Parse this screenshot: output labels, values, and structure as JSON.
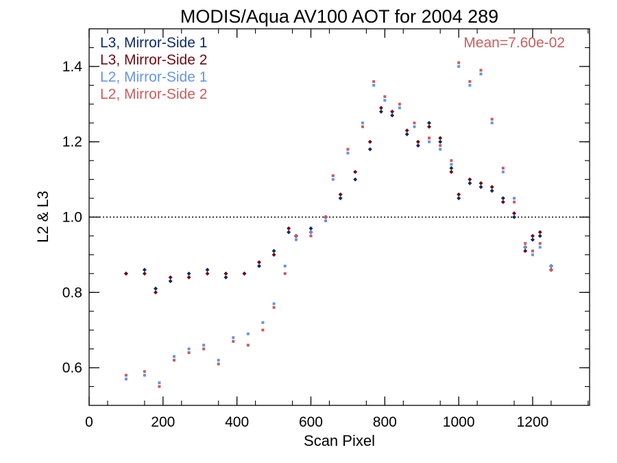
{
  "chart_data": {
    "type": "scatter",
    "title": "MODIS/Aqua AV100 AOT for 2004 289",
    "xlabel": "Scan Pixel",
    "ylabel": "L2 & L3",
    "xlim": [
      0,
      1354
    ],
    "ylim": [
      0.5,
      1.5
    ],
    "xticks": [
      0,
      200,
      400,
      600,
      800,
      1000,
      1200
    ],
    "yticks": [
      0.6,
      0.8,
      1.0,
      1.2,
      1.4
    ],
    "x_tick_labels": [
      "0",
      "200",
      "400",
      "600",
      "800",
      "1000",
      "1200"
    ],
    "y_tick_labels": [
      "0.6",
      "0.8",
      "1.0",
      "1.2",
      "1.4"
    ],
    "reference_line": {
      "y": 1.0,
      "style": "dotted"
    },
    "annotation": {
      "text": "Mean=7.60e-02",
      "color": "#cd5c5c",
      "placement": "top-right"
    },
    "legend_placement": "top-left",
    "series": [
      {
        "name": "L3, Mirror-Side 1",
        "color": "#0b2a66",
        "points": [
          [
            100,
            0.85
          ],
          [
            150,
            0.86
          ],
          [
            180,
            0.81
          ],
          [
            220,
            0.83
          ],
          [
            270,
            0.85
          ],
          [
            320,
            0.86
          ],
          [
            370,
            0.84
          ],
          [
            420,
            0.85
          ],
          [
            460,
            0.87
          ],
          [
            500,
            0.91
          ],
          [
            540,
            0.96
          ],
          [
            560,
            0.95
          ],
          [
            600,
            0.97
          ],
          [
            640,
            1.0
          ],
          [
            680,
            1.05
          ],
          [
            720,
            1.1
          ],
          [
            760,
            1.18
          ],
          [
            790,
            1.28
          ],
          [
            820,
            1.27
          ],
          [
            860,
            1.22
          ],
          [
            890,
            1.19
          ],
          [
            920,
            1.25
          ],
          [
            950,
            1.2
          ],
          [
            980,
            1.13
          ],
          [
            1000,
            1.05
          ],
          [
            1030,
            1.09
          ],
          [
            1060,
            1.08
          ],
          [
            1090,
            1.07
          ],
          [
            1120,
            1.05
          ],
          [
            1150,
            1.0
          ],
          [
            1180,
            0.92
          ],
          [
            1200,
            0.94
          ],
          [
            1220,
            0.95
          ],
          [
            1250,
            0.87
          ]
        ]
      },
      {
        "name": "L3, Mirror-Side 2",
        "color": "#6e0a12",
        "points": [
          [
            100,
            0.85
          ],
          [
            150,
            0.85
          ],
          [
            180,
            0.8
          ],
          [
            220,
            0.84
          ],
          [
            270,
            0.84
          ],
          [
            320,
            0.85
          ],
          [
            370,
            0.85
          ],
          [
            420,
            0.85
          ],
          [
            460,
            0.88
          ],
          [
            500,
            0.9
          ],
          [
            540,
            0.97
          ],
          [
            560,
            0.95
          ],
          [
            600,
            0.96
          ],
          [
            640,
            1.0
          ],
          [
            680,
            1.06
          ],
          [
            720,
            1.12
          ],
          [
            760,
            1.2
          ],
          [
            790,
            1.29
          ],
          [
            820,
            1.28
          ],
          [
            860,
            1.23
          ],
          [
            890,
            1.2
          ],
          [
            920,
            1.24
          ],
          [
            950,
            1.21
          ],
          [
            980,
            1.12
          ],
          [
            1000,
            1.06
          ],
          [
            1030,
            1.1
          ],
          [
            1060,
            1.09
          ],
          [
            1090,
            1.08
          ],
          [
            1120,
            1.04
          ],
          [
            1150,
            1.01
          ],
          [
            1180,
            0.91
          ],
          [
            1200,
            0.95
          ],
          [
            1220,
            0.96
          ],
          [
            1250,
            0.86
          ]
        ]
      },
      {
        "name": "L2, Mirror-Side 1",
        "color": "#6495ed",
        "points": [
          [
            100,
            0.57
          ],
          [
            150,
            0.58
          ],
          [
            190,
            0.56
          ],
          [
            230,
            0.63
          ],
          [
            270,
            0.65
          ],
          [
            310,
            0.66
          ],
          [
            350,
            0.62
          ],
          [
            390,
            0.68
          ],
          [
            430,
            0.69
          ],
          [
            470,
            0.72
          ],
          [
            500,
            0.77
          ],
          [
            530,
            0.87
          ],
          [
            560,
            0.94
          ],
          [
            600,
            0.96
          ],
          [
            640,
            0.99
          ],
          [
            660,
            1.1
          ],
          [
            700,
            1.17
          ],
          [
            740,
            1.25
          ],
          [
            770,
            1.35
          ],
          [
            800,
            1.31
          ],
          [
            840,
            1.29
          ],
          [
            880,
            1.24
          ],
          [
            920,
            1.2
          ],
          [
            950,
            1.18
          ],
          [
            980,
            1.14
          ],
          [
            1000,
            1.4
          ],
          [
            1030,
            1.35
          ],
          [
            1060,
            1.38
          ],
          [
            1090,
            1.25
          ],
          [
            1120,
            1.12
          ],
          [
            1150,
            1.05
          ],
          [
            1180,
            0.92
          ],
          [
            1200,
            0.9
          ],
          [
            1220,
            0.92
          ],
          [
            1250,
            0.87
          ]
        ]
      },
      {
        "name": "L2, Mirror-Side 2",
        "color": "#cd5c5c",
        "points": [
          [
            100,
            0.58
          ],
          [
            150,
            0.59
          ],
          [
            190,
            0.55
          ],
          [
            230,
            0.62
          ],
          [
            270,
            0.64
          ],
          [
            310,
            0.65
          ],
          [
            350,
            0.61
          ],
          [
            390,
            0.67
          ],
          [
            430,
            0.66
          ],
          [
            470,
            0.7
          ],
          [
            500,
            0.76
          ],
          [
            530,
            0.85
          ],
          [
            560,
            0.95
          ],
          [
            600,
            0.95
          ],
          [
            640,
            1.0
          ],
          [
            660,
            1.11
          ],
          [
            700,
            1.18
          ],
          [
            740,
            1.24
          ],
          [
            770,
            1.36
          ],
          [
            800,
            1.32
          ],
          [
            840,
            1.3
          ],
          [
            880,
            1.25
          ],
          [
            920,
            1.21
          ],
          [
            950,
            1.19
          ],
          [
            980,
            1.15
          ],
          [
            1000,
            1.41
          ],
          [
            1030,
            1.36
          ],
          [
            1060,
            1.39
          ],
          [
            1090,
            1.26
          ],
          [
            1120,
            1.13
          ],
          [
            1150,
            1.04
          ],
          [
            1180,
            0.93
          ],
          [
            1200,
            0.91
          ],
          [
            1220,
            0.93
          ],
          [
            1250,
            0.86
          ]
        ]
      }
    ]
  }
}
